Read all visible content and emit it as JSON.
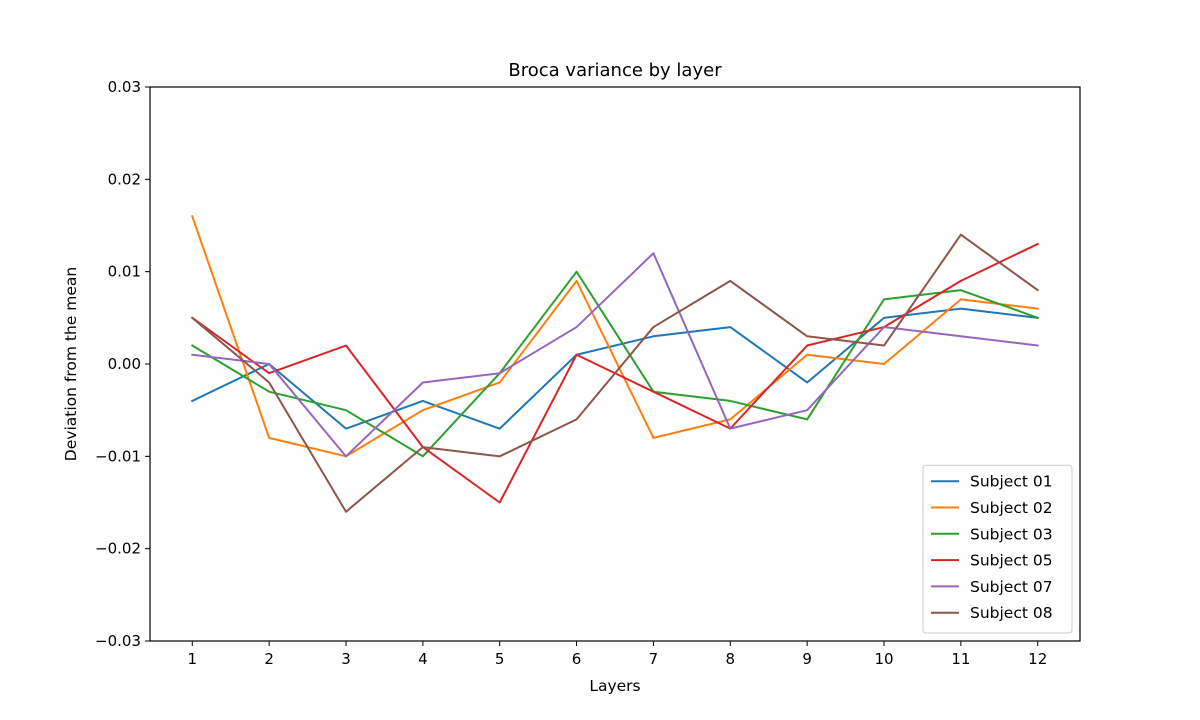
{
  "chart_data": {
    "type": "line",
    "title": "Broca variance by layer",
    "xlabel": "Layers",
    "ylabel": "Deviation from the mean",
    "x": [
      1,
      2,
      3,
      4,
      5,
      6,
      7,
      8,
      9,
      10,
      11,
      12
    ],
    "xticks": [
      "1",
      "2",
      "3",
      "4",
      "5",
      "6",
      "7",
      "8",
      "9",
      "10",
      "11",
      "12"
    ],
    "ylim": [
      -0.03,
      0.03
    ],
    "yticks": [
      -0.03,
      -0.02,
      -0.01,
      0.0,
      0.01,
      0.02,
      0.03
    ],
    "ytick_labels": [
      "−0.03",
      "−0.02",
      "−0.01",
      "0.00",
      "0.01",
      "0.02",
      "0.03"
    ],
    "grid": false,
    "legend_position": "lower-right",
    "series": [
      {
        "name": "Subject 01",
        "color": "#1f77b4",
        "values": [
          -0.004,
          0.0,
          -0.007,
          -0.004,
          -0.007,
          0.001,
          0.003,
          0.004,
          -0.002,
          0.005,
          0.006,
          0.005
        ]
      },
      {
        "name": "Subject 02",
        "color": "#ff7f0e",
        "values": [
          0.016,
          -0.008,
          -0.01,
          -0.005,
          -0.002,
          0.009,
          -0.008,
          -0.006,
          0.001,
          0.0,
          0.007,
          0.006
        ]
      },
      {
        "name": "Subject 03",
        "color": "#2ca02c",
        "values": [
          0.002,
          -0.003,
          -0.005,
          -0.01,
          -0.001,
          0.01,
          -0.003,
          -0.004,
          -0.006,
          0.007,
          0.008,
          0.005
        ]
      },
      {
        "name": "Subject 05",
        "color": "#d62728",
        "values": [
          0.005,
          -0.001,
          0.002,
          -0.009,
          -0.015,
          0.001,
          -0.003,
          -0.007,
          0.002,
          0.004,
          0.009,
          0.013
        ]
      },
      {
        "name": "Subject 07",
        "color": "#9467bd",
        "values": [
          0.001,
          0.0,
          -0.01,
          -0.002,
          -0.001,
          0.004,
          0.012,
          -0.007,
          -0.005,
          0.004,
          0.003,
          0.002
        ]
      },
      {
        "name": "Subject 08",
        "color": "#8c564b",
        "values": [
          0.005,
          -0.002,
          -0.016,
          -0.009,
          -0.01,
          -0.006,
          0.004,
          0.009,
          0.003,
          0.002,
          0.014,
          0.008
        ]
      }
    ]
  }
}
